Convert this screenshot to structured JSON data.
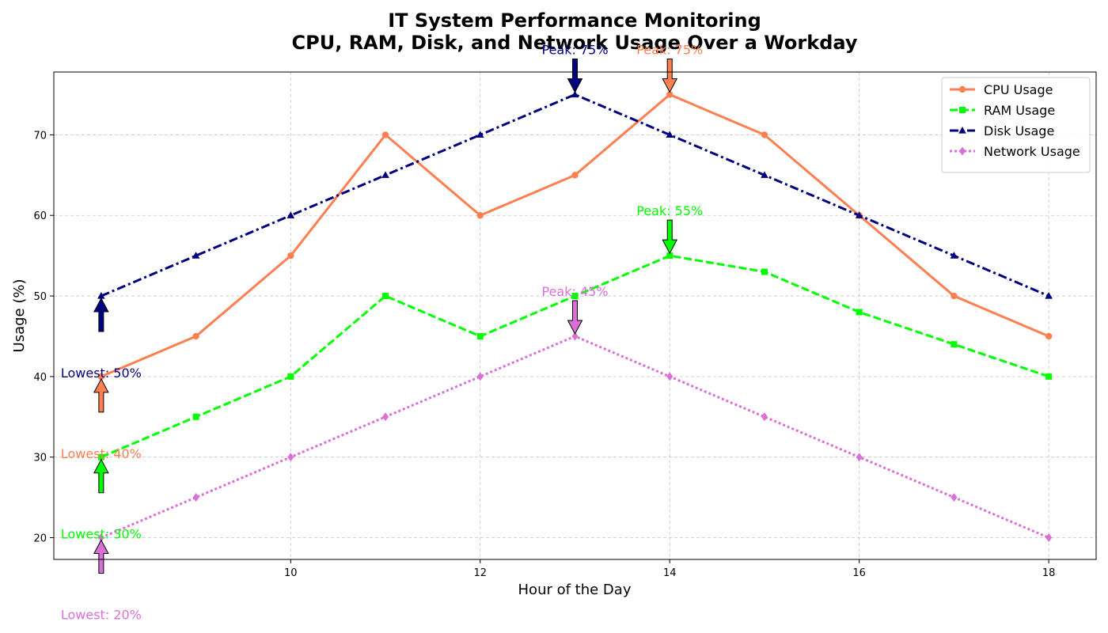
{
  "chart_data": {
    "type": "line",
    "title_line1": "IT System Performance Monitoring",
    "title_line2": "CPU, RAM, Disk, and Network Usage Over a Workday",
    "xlabel": "Hour of the Day",
    "ylabel": "Usage (%)",
    "x": [
      8,
      9,
      10,
      11,
      12,
      13,
      14,
      15,
      16,
      17,
      18
    ],
    "xlim": [
      7.5,
      18.5
    ],
    "ylim": [
      17.3,
      77.8
    ],
    "xticks": [
      10,
      12,
      14,
      16,
      18
    ],
    "yticks": [
      20,
      30,
      40,
      50,
      60,
      70
    ],
    "grid": true,
    "legend_position": "top-right",
    "series": [
      {
        "name": "CPU Usage",
        "color": "#ff7f50",
        "marker": "circle",
        "line_style": "solid",
        "values": [
          40,
          45,
          55,
          70,
          60,
          65,
          75,
          70,
          60,
          50,
          45
        ],
        "peak_label": "Peak: 75%",
        "lowest_label": "Lowest: 40%"
      },
      {
        "name": "RAM Usage",
        "color": "#00ff00",
        "marker": "square",
        "line_style": "dashed",
        "values": [
          30,
          35,
          40,
          50,
          45,
          50,
          55,
          53,
          48,
          44,
          40
        ],
        "peak_label": "Peak: 55%",
        "lowest_label": "Lowest: 30%"
      },
      {
        "name": "Disk Usage",
        "color": "#000080",
        "marker": "triangle",
        "line_style": "dashdot",
        "values": [
          50,
          55,
          60,
          65,
          70,
          75,
          70,
          65,
          60,
          55,
          50
        ],
        "peak_label": "Peak: 75%",
        "lowest_label": "Lowest: 50%"
      },
      {
        "name": "Network Usage",
        "color": "#da70d6",
        "marker": "diamond",
        "line_style": "dotted",
        "values": [
          20,
          25,
          30,
          35,
          40,
          45,
          40,
          35,
          30,
          25,
          20
        ],
        "peak_label": "Peak: 45%",
        "lowest_label": "Lowest: 20%"
      }
    ]
  }
}
